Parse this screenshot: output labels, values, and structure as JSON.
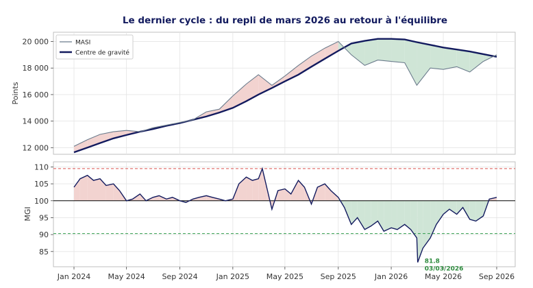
{
  "title": "Le dernier cycle : du repli de mars 2026 au retour à l'équilibre",
  "colors": {
    "masi": "#6b7b8c",
    "gravity": "#121a5e",
    "mgi": "#121a5e",
    "fill_above": "#f2d3d0",
    "fill_below": "#cfe5d6",
    "upper_line": "#d9534f",
    "lower_line": "#2e9b4a",
    "annotation": "#2e8b3e",
    "grid": "#e4e4e4"
  },
  "chart_data": [
    {
      "type": "line",
      "ylabel": "Points",
      "ylim": [
        11500,
        20700
      ],
      "yticks": [
        12000,
        14000,
        16000,
        18000,
        20000
      ],
      "ytick_labels": [
        "12 000",
        "14 000",
        "16 000",
        "18 000",
        "20 000"
      ],
      "legend_position": "top-left",
      "grid": true,
      "series": [
        {
          "name": "MASI",
          "points": [
            [
              "2024-01-01",
              12100
            ],
            [
              "2024-02-01",
              12600
            ],
            [
              "2024-03-01",
              13000
            ],
            [
              "2024-04-01",
              13200
            ],
            [
              "2024-05-01",
              13300
            ],
            [
              "2024-06-01",
              13200
            ],
            [
              "2024-07-01",
              13500
            ],
            [
              "2024-08-01",
              13700
            ],
            [
              "2024-09-01",
              13900
            ],
            [
              "2024-10-01",
              14100
            ],
            [
              "2024-11-01",
              14700
            ],
            [
              "2024-12-01",
              14900
            ],
            [
              "2025-01-01",
              15900
            ],
            [
              "2025-02-01",
              16800
            ],
            [
              "2025-03-01",
              17500
            ],
            [
              "2025-04-01",
              16700
            ],
            [
              "2025-05-01",
              17400
            ],
            [
              "2025-06-01",
              18200
            ],
            [
              "2025-07-01",
              18900
            ],
            [
              "2025-08-01",
              19500
            ],
            [
              "2025-09-01",
              20000
            ],
            [
              "2025-10-01",
              19000
            ],
            [
              "2025-11-01",
              18200
            ],
            [
              "2025-12-01",
              18600
            ],
            [
              "2026-01-01",
              18500
            ],
            [
              "2026-02-01",
              18400
            ],
            [
              "2026-03-01",
              16700
            ],
            [
              "2026-04-01",
              18000
            ],
            [
              "2026-05-01",
              17900
            ],
            [
              "2026-06-01",
              18100
            ],
            [
              "2026-07-01",
              17700
            ],
            [
              "2026-08-01",
              18500
            ],
            [
              "2026-09-01",
              19000
            ]
          ]
        },
        {
          "name": "Centre de gravité",
          "points": [
            [
              "2024-01-01",
              11650
            ],
            [
              "2024-02-01",
              12000
            ],
            [
              "2024-03-01",
              12350
            ],
            [
              "2024-04-01",
              12700
            ],
            [
              "2024-05-01",
              12950
            ],
            [
              "2024-06-01",
              13200
            ],
            [
              "2024-07-01",
              13400
            ],
            [
              "2024-08-01",
              13650
            ],
            [
              "2024-09-01",
              13850
            ],
            [
              "2024-10-01",
              14100
            ],
            [
              "2024-11-01",
              14350
            ],
            [
              "2024-12-01",
              14650
            ],
            [
              "2025-01-01",
              15000
            ],
            [
              "2025-02-01",
              15500
            ],
            [
              "2025-03-01",
              16000
            ],
            [
              "2025-04-01",
              16500
            ],
            [
              "2025-05-01",
              17000
            ],
            [
              "2025-06-01",
              17500
            ],
            [
              "2025-07-01",
              18100
            ],
            [
              "2025-08-01",
              18700
            ],
            [
              "2025-09-01",
              19300
            ],
            [
              "2025-10-01",
              19850
            ],
            [
              "2025-11-01",
              20050
            ],
            [
              "2025-12-01",
              20200
            ],
            [
              "2026-01-01",
              20200
            ],
            [
              "2026-02-01",
              20150
            ],
            [
              "2026-03-01",
              19950
            ],
            [
              "2026-04-01",
              19750
            ],
            [
              "2026-05-01",
              19550
            ],
            [
              "2026-06-01",
              19400
            ],
            [
              "2026-07-01",
              19250
            ],
            [
              "2026-08-01",
              19050
            ],
            [
              "2026-09-01",
              18850
            ]
          ]
        }
      ]
    },
    {
      "type": "line",
      "ylabel": "MGI",
      "ylim": [
        80.5,
        111.5
      ],
      "yticks": [
        85,
        90,
        95,
        100,
        105,
        110
      ],
      "ytick_labels": [
        "85",
        "90",
        "95",
        "100",
        "105",
        "110"
      ],
      "hlines": [
        109.5,
        100,
        90.3
      ],
      "grid": true,
      "xticks": [
        "2024-01-01",
        "2024-05-01",
        "2024-09-01",
        "2025-01-01",
        "2025-05-01",
        "2025-09-01",
        "2026-01-01",
        "2026-05-01",
        "2026-09-01"
      ],
      "xtick_labels": [
        "Jan 2024",
        "May 2024",
        "Sep 2024",
        "Jan 2025",
        "May 2025",
        "Sep 2025",
        "Jan 2026",
        "May 2026",
        "Sep 2026"
      ],
      "series": [
        {
          "points": [
            [
              "2024-01-01",
              104
            ],
            [
              "2024-01-15",
              106.5
            ],
            [
              "2024-02-01",
              107.5
            ],
            [
              "2024-02-15",
              106
            ],
            [
              "2024-03-01",
              106.5
            ],
            [
              "2024-03-15",
              104.5
            ],
            [
              "2024-04-01",
              105
            ],
            [
              "2024-04-15",
              103
            ],
            [
              "2024-05-01",
              100
            ],
            [
              "2024-05-15",
              100.5
            ],
            [
              "2024-06-01",
              102
            ],
            [
              "2024-06-15",
              100
            ],
            [
              "2024-07-01",
              101
            ],
            [
              "2024-07-15",
              101.5
            ],
            [
              "2024-08-01",
              100.5
            ],
            [
              "2024-08-15",
              101
            ],
            [
              "2024-09-01",
              100
            ],
            [
              "2024-09-15",
              99.5
            ],
            [
              "2024-10-01",
              100.5
            ],
            [
              "2024-10-15",
              101
            ],
            [
              "2024-11-01",
              101.5
            ],
            [
              "2024-11-15",
              101
            ],
            [
              "2024-12-01",
              100.5
            ],
            [
              "2024-12-15",
              100
            ],
            [
              "2025-01-01",
              100.5
            ],
            [
              "2025-01-15",
              105
            ],
            [
              "2025-02-01",
              107
            ],
            [
              "2025-02-15",
              106
            ],
            [
              "2025-03-01",
              106.5
            ],
            [
              "2025-03-10",
              109.5
            ],
            [
              "2025-03-20",
              104
            ],
            [
              "2025-04-01",
              97.5
            ],
            [
              "2025-04-15",
              103
            ],
            [
              "2025-05-01",
              103.5
            ],
            [
              "2025-05-15",
              102
            ],
            [
              "2025-06-01",
              106
            ],
            [
              "2025-06-15",
              104
            ],
            [
              "2025-07-01",
              99
            ],
            [
              "2025-07-15",
              104
            ],
            [
              "2025-08-01",
              105
            ],
            [
              "2025-08-15",
              103
            ],
            [
              "2025-09-01",
              101
            ],
            [
              "2025-09-15",
              98
            ],
            [
              "2025-10-01",
              93
            ],
            [
              "2025-10-15",
              95
            ],
            [
              "2025-11-01",
              91.5
            ],
            [
              "2025-11-15",
              92.5
            ],
            [
              "2025-12-01",
              94
            ],
            [
              "2025-12-15",
              91
            ],
            [
              "2026-01-01",
              92
            ],
            [
              "2026-01-15",
              91.5
            ],
            [
              "2026-02-01",
              93
            ],
            [
              "2026-02-15",
              91.5
            ],
            [
              "2026-03-01",
              89
            ],
            [
              "2026-03-03",
              81.8
            ],
            [
              "2026-03-15",
              86
            ],
            [
              "2026-04-01",
              89
            ],
            [
              "2026-04-15",
              93
            ],
            [
              "2026-05-01",
              96
            ],
            [
              "2026-05-15",
              97.5
            ],
            [
              "2026-06-01",
              96
            ],
            [
              "2026-06-15",
              98
            ],
            [
              "2026-07-01",
              94.5
            ],
            [
              "2026-07-15",
              94
            ],
            [
              "2026-08-01",
              95.5
            ],
            [
              "2026-08-15",
              100.5
            ],
            [
              "2026-09-01",
              101
            ]
          ]
        }
      ],
      "annotation": {
        "value": "81.8",
        "date": "03/03/2026",
        "x": "2026-03-03",
        "y": 81.8
      }
    }
  ]
}
